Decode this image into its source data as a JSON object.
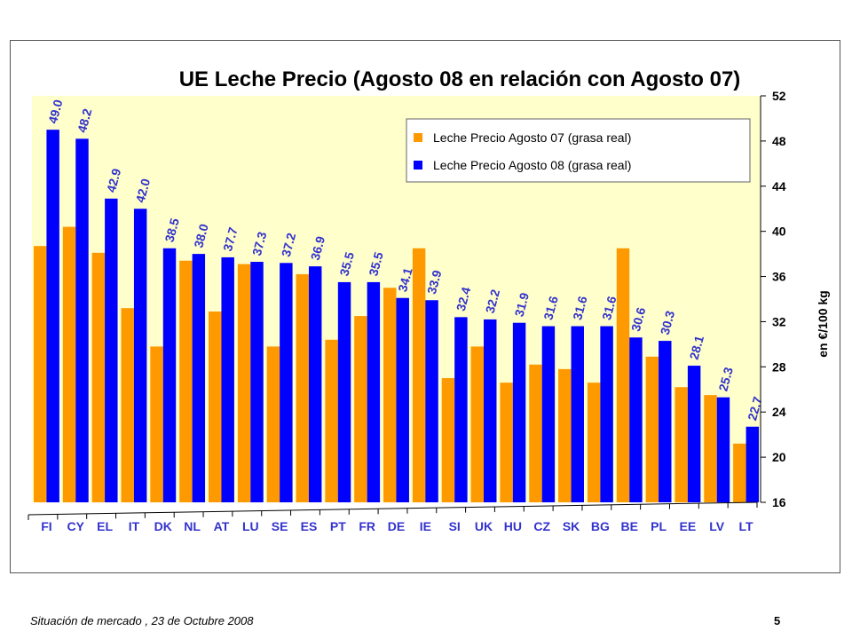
{
  "slide": {
    "footer": "Situación de mercado , 23 de  Octubre 2008",
    "page_number": "5"
  },
  "colors": {
    "aug07": "#ff9900",
    "aug08": "#0000ff",
    "plot_bg": "#ffffcc",
    "label": "#3333cc"
  },
  "chart_data": {
    "type": "bar",
    "title": "UE Leche Precio  (Agosto 08 en relación con Agosto 07)",
    "ylabel": "en €/100 kg",
    "xlabel": "",
    "ylim": [
      16,
      52
    ],
    "yticks": [
      16,
      20,
      24,
      28,
      32,
      36,
      40,
      44,
      48,
      52
    ],
    "legend_position": "top-right",
    "categories": [
      "FI",
      "CY",
      "EL",
      "IT",
      "DK",
      "NL",
      "AT",
      "LU",
      "SE",
      "ES",
      "PT",
      "FR",
      "DE",
      "IE",
      "SI",
      "UK",
      "HU",
      "CZ",
      "SK",
      "BG",
      "BE",
      "PL",
      "EE",
      "LV",
      "LT"
    ],
    "series": [
      {
        "name": "Leche Precio Agosto 07 (grasa  real)",
        "values": [
          38.7,
          40.4,
          38.1,
          33.2,
          29.8,
          37.4,
          32.9,
          37.1,
          29.8,
          36.2,
          30.4,
          32.5,
          35.0,
          38.5,
          27.0,
          29.8,
          26.6,
          28.2,
          27.8,
          26.6,
          38.5,
          28.9,
          26.2,
          25.5,
          21.2
        ]
      },
      {
        "name": "Leche Precio Agosto 08 (grasa  real)",
        "values": [
          49.0,
          48.2,
          42.9,
          42.0,
          38.5,
          38.0,
          37.7,
          37.3,
          37.2,
          36.9,
          35.5,
          35.5,
          34.1,
          33.9,
          32.4,
          32.2,
          31.9,
          31.6,
          31.6,
          31.6,
          30.6,
          30.3,
          28.1,
          25.3,
          22.7
        ],
        "labels": [
          "49.0",
          "48.2",
          "42.9",
          "42.0",
          "38.5",
          "38.0",
          "37.7",
          "37.3",
          "37.2",
          "36.9",
          "35.5",
          "35.5",
          "34.1",
          "33.9",
          "32.4",
          "32.2",
          "31.9",
          "31.6",
          "31.6",
          "31.6",
          "30.6",
          "30.3",
          "28.1",
          "25.3",
          "22.7"
        ]
      }
    ]
  }
}
